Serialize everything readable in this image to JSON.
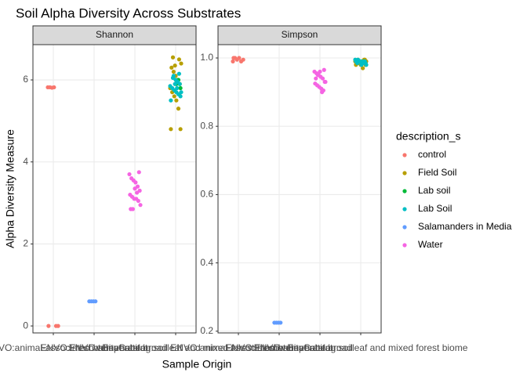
{
  "chart_data": {
    "type": "scatter",
    "title": "Soil Alpha Diversity Across Substrates",
    "x_label": "Sample Origin",
    "y_label": "Alpha Diversity Measure",
    "legend_title": "description_s",
    "legend_position": "right",
    "grid": true,
    "categories": [
      "ENVO:animal-associated habitat",
      "ENVO:Freshwater habitat",
      "EnvCatalog:soil",
      "ENVO:temperate broadleaf and mixed forest biome"
    ],
    "facets": [
      {
        "label": "Shannon",
        "ylim": [
          -0.17,
          6.86
        ],
        "yticks": [
          0,
          2,
          4,
          6
        ]
      },
      {
        "label": "Simpson",
        "ylim": [
          0.195,
          1.039
        ],
        "yticks": [
          {
            "value": 0.2,
            "label": "0.2"
          },
          {
            "value": 0.4,
            "label": "0.4"
          },
          {
            "value": 0.6,
            "label": "0.6"
          },
          {
            "value": 0.8,
            "label": "0.8"
          },
          {
            "value": 1.0,
            "label": "1.0"
          }
        ]
      }
    ],
    "series": [
      {
        "name": "control",
        "color": "#F8766D",
        "category": 0,
        "values": [
          [
            5.82,
            5.82,
            5.81,
            5.82,
            0.0,
            0.0,
            0.0
          ],
          [
            0.99,
            1.0,
            0.995,
            1.0,
            0.99,
            0.995,
            1.0
          ]
        ]
      },
      {
        "name": "Field Soil",
        "color": "#B79F00",
        "category": 3,
        "values": [
          [
            6.5,
            6.4,
            6.3,
            6.2,
            6.1,
            6.0,
            5.9,
            5.8,
            5.7,
            5.6,
            5.5,
            5.3,
            4.8,
            4.8,
            6.55,
            6.35,
            5.95,
            5.65
          ],
          [
            0.995,
            0.99,
            0.99,
            0.985,
            0.98,
            0.97,
            0.995,
            0.99,
            0.99,
            0.985,
            0.985,
            0.99,
            0.98,
            0.98,
            0.995,
            0.99,
            0.99,
            0.985
          ]
        ]
      },
      {
        "name": "Lab soil",
        "color": "#00BA38",
        "category": 3,
        "values": [
          [
            5.9,
            6.0,
            5.8
          ],
          [
            0.99,
            0.99,
            0.985
          ]
        ]
      },
      {
        "name": "Lab Soil",
        "color": "#00BFC4",
        "category": 3,
        "values": [
          [
            6.1,
            6.0,
            5.95,
            5.9,
            5.85,
            5.8,
            5.75,
            5.7,
            5.65,
            5.6,
            5.5,
            6.05,
            5.9,
            5.8,
            6.15,
            5.7
          ],
          [
            0.99,
            0.99,
            0.985,
            0.99,
            0.995,
            0.985,
            0.99,
            0.98,
            0.99,
            0.985,
            0.99,
            0.995,
            0.99,
            0.985,
            0.99,
            0.98
          ]
        ]
      },
      {
        "name": "Salamanders in Media",
        "color": "#619CFF",
        "category": 1,
        "values": [
          [
            0.6,
            0.6,
            0.6,
            0.6
          ],
          [
            0.225,
            0.225,
            0.225,
            0.225
          ]
        ]
      },
      {
        "name": "Water",
        "color": "#F564E3",
        "category": 2,
        "values": [
          [
            3.75,
            3.7,
            3.6,
            3.55,
            3.5,
            3.4,
            3.3,
            3.2,
            3.15,
            3.1,
            3.1,
            3.05,
            2.95,
            2.85,
            2.85,
            3.35,
            3.25
          ],
          [
            0.965,
            0.96,
            0.955,
            0.95,
            0.945,
            0.94,
            0.93,
            0.925,
            0.92,
            0.915,
            0.91,
            0.905,
            0.93,
            0.94,
            0.95,
            0.96,
            0.9
          ]
        ]
      }
    ]
  }
}
